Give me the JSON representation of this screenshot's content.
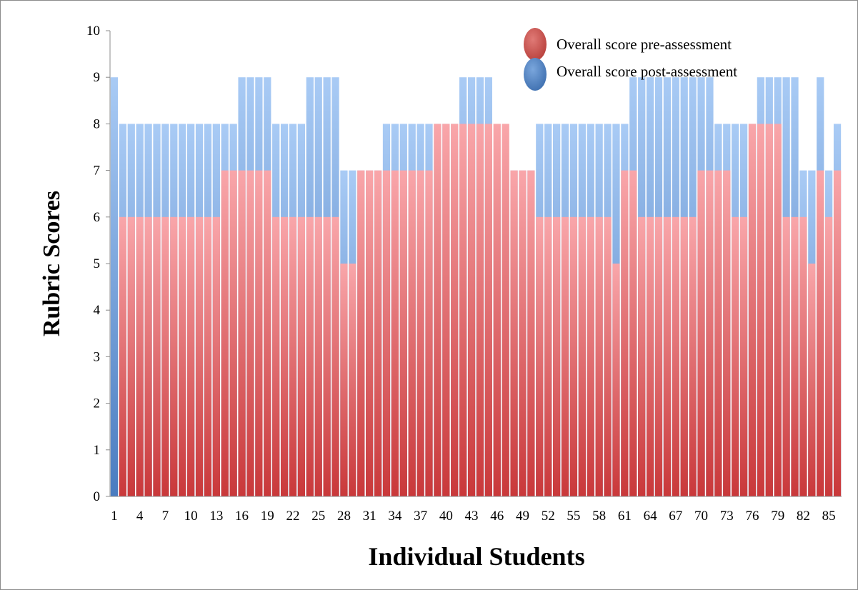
{
  "chart_data": {
    "type": "bar",
    "title": "",
    "xlabel": "Individual Students",
    "ylabel": "Rubric Scores",
    "ylim": [
      0,
      10
    ],
    "yticks": [
      0,
      1,
      2,
      3,
      4,
      5,
      6,
      7,
      8,
      9,
      10
    ],
    "x": [
      1,
      2,
      3,
      4,
      5,
      6,
      7,
      8,
      9,
      10,
      11,
      12,
      13,
      14,
      15,
      16,
      17,
      18,
      19,
      20,
      21,
      22,
      23,
      24,
      25,
      26,
      27,
      28,
      29,
      30,
      31,
      32,
      33,
      34,
      35,
      36,
      37,
      38,
      39,
      40,
      41,
      42,
      43,
      44,
      45,
      46,
      47,
      48,
      49,
      50,
      51,
      52,
      53,
      54,
      55,
      56,
      57,
      58,
      59,
      60,
      61,
      62,
      63,
      64,
      65,
      66,
      67,
      68,
      69,
      70,
      71,
      72,
      73,
      74,
      75,
      76,
      77,
      78,
      79,
      80,
      81,
      82,
      83,
      84,
      85,
      86
    ],
    "xtick_labels": [
      "1",
      "4",
      "7",
      "10",
      "13",
      "16",
      "19",
      "22",
      "25",
      "28",
      "31",
      "34",
      "37",
      "40",
      "43",
      "46",
      "49",
      "52",
      "55",
      "58",
      "61",
      "64",
      "67",
      "70",
      "73",
      "76",
      "79",
      "82",
      "85"
    ],
    "legend_position": "top-right",
    "series": [
      {
        "name": "Overall score pre-assessment",
        "color": "#c0504d",
        "values": [
          0,
          6,
          6,
          6,
          6,
          6,
          6,
          6,
          6,
          6,
          6,
          6,
          6,
          7,
          7,
          7,
          7,
          7,
          7,
          6,
          6,
          6,
          6,
          6,
          6,
          6,
          6,
          5,
          5,
          7,
          7,
          7,
          7,
          7,
          7,
          7,
          7,
          7,
          8,
          8,
          8,
          8,
          8,
          8,
          8,
          8,
          8,
          7,
          7,
          7,
          6,
          6,
          6,
          6,
          6,
          6,
          6,
          6,
          6,
          5,
          7,
          7,
          6,
          6,
          6,
          6,
          6,
          6,
          6,
          7,
          7,
          7,
          7,
          6,
          6,
          8,
          8,
          8,
          8,
          6,
          6,
          6,
          5,
          7,
          6,
          7
        ]
      },
      {
        "name": "Overall score post-assessment",
        "color": "#4f81bd",
        "values": [
          9,
          8,
          8,
          8,
          8,
          8,
          8,
          8,
          8,
          8,
          8,
          8,
          8,
          8,
          8,
          9,
          9,
          9,
          9,
          8,
          8,
          8,
          8,
          9,
          9,
          9,
          9,
          7,
          7,
          7,
          7,
          7,
          8,
          8,
          8,
          8,
          8,
          8,
          8,
          8,
          8,
          9,
          9,
          9,
          9,
          7,
          7,
          7,
          7,
          7,
          8,
          8,
          8,
          8,
          8,
          8,
          8,
          8,
          8,
          8,
          8,
          9,
          9,
          9,
          9,
          9,
          9,
          9,
          9,
          9,
          9,
          8,
          8,
          8,
          8,
          8,
          9,
          9,
          9,
          9,
          9,
          7,
          7,
          9,
          7,
          8
        ]
      }
    ]
  }
}
